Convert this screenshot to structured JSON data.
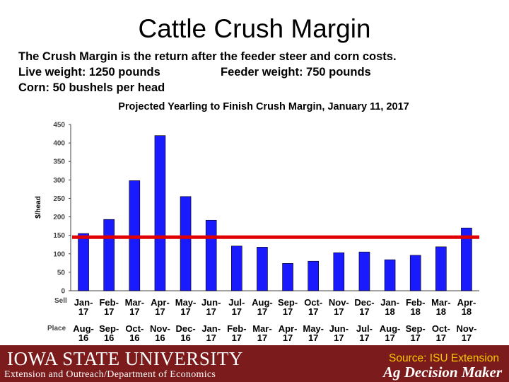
{
  "slide": {
    "title": "Cattle Crush Margin",
    "intro": {
      "line1": "The Crush Margin is the return after the feeder steer and corn costs.",
      "live_weight": "Live weight:  1250 pounds",
      "feeder_weight": "Feeder weight:  750 pounds",
      "corn": "Corn:  50 bushels per head"
    }
  },
  "chart_data": {
    "type": "bar",
    "title": "Projected Yearling to Finish Crush Margin, January 11, 2017",
    "ylabel": "$/head",
    "ylim": [
      0,
      450
    ],
    "yticks": [
      0,
      50,
      100,
      150,
      200,
      250,
      300,
      350,
      400,
      450
    ],
    "grid": false,
    "row_labels": {
      "sell": "Sell",
      "place": "Place"
    },
    "sell": [
      "Jan-17",
      "Feb-17",
      "Mar-17",
      "Apr-17",
      "May-17",
      "Jun-17",
      "Jul-17",
      "Aug-17",
      "Sep-17",
      "Oct-17",
      "Nov-17",
      "Dec-17",
      "Jan-18",
      "Feb-18",
      "Mar-18",
      "Apr-18"
    ],
    "place": [
      "Aug-16",
      "Sep-16",
      "Oct-16",
      "Nov-16",
      "Dec-16",
      "Jan-17",
      "Feb-17",
      "Mar-17",
      "Apr-17",
      "May-17",
      "Jun-17",
      "Jul-17",
      "Aug-17",
      "Sep-17",
      "Oct-17",
      "Nov-17"
    ],
    "values": [
      155,
      193,
      298,
      420,
      255,
      191,
      121,
      118,
      74,
      80,
      103,
      105,
      84,
      96,
      119,
      170
    ],
    "reference_line": 145,
    "bar_color": "#1a1aff",
    "reference_color": "#e00000"
  },
  "footer": {
    "university": "IOWA STATE UNIVERSITY",
    "department": "Extension and Outreach/Department of Economics",
    "source": "Source: ISU Extension",
    "brand": "Ag Decision Maker",
    "bg_color": "#7b1b1b",
    "source_color": "#f5c800"
  }
}
